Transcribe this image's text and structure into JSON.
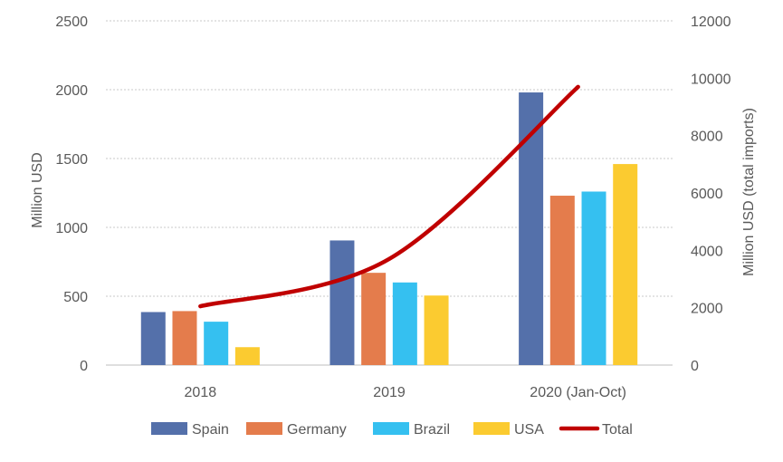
{
  "chart_data": {
    "type": "bar",
    "categories": [
      "2018",
      "2019",
      "2020 (Jan-Oct)"
    ],
    "series": [
      {
        "name": "Spain",
        "type": "bar",
        "axis": "left",
        "color": "#5470aa",
        "values": [
          385,
          905,
          1980
        ]
      },
      {
        "name": "Germany",
        "type": "bar",
        "axis": "left",
        "color": "#e47c4c",
        "values": [
          392,
          670,
          1230
        ]
      },
      {
        "name": "Brazil",
        "type": "bar",
        "axis": "left",
        "color": "#35c0f0",
        "values": [
          315,
          600,
          1260
        ]
      },
      {
        "name": "USA",
        "type": "bar",
        "axis": "left",
        "color": "#fbcb30",
        "values": [
          130,
          505,
          1460
        ]
      },
      {
        "name": "Total",
        "type": "line",
        "axis": "right",
        "color": "#c00000",
        "values": [
          2050,
          3700,
          9700
        ]
      }
    ],
    "ylabel": "Million USD",
    "y2label": "Million USD (total imports)",
    "ylim": [
      0,
      2500
    ],
    "y2lim": [
      0,
      12000
    ],
    "yticks": [
      "0",
      "500",
      "1000",
      "1500",
      "2000",
      "2500"
    ],
    "y2ticks": [
      "0",
      "2000",
      "4000",
      "6000",
      "8000",
      "10000",
      "12000"
    ],
    "grid": true,
    "legend": "bottom"
  }
}
